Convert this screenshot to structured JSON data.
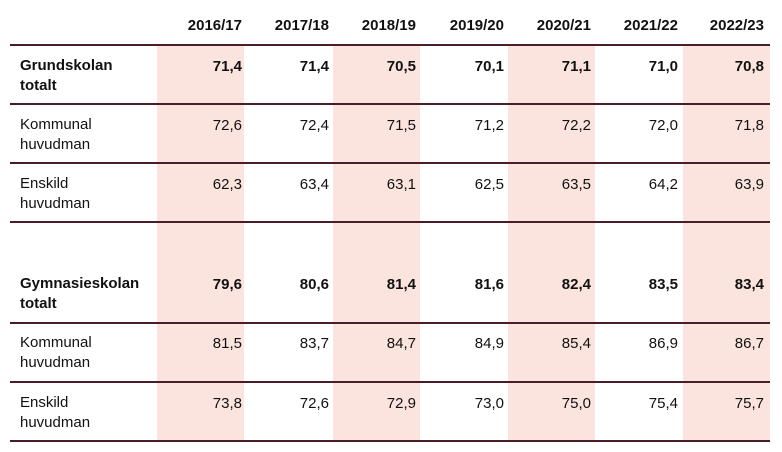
{
  "table": {
    "columns": [
      "2016/17",
      "2017/18",
      "2018/19",
      "2019/20",
      "2020/21",
      "2021/22",
      "2022/23"
    ],
    "rows": [
      {
        "label_line1": "Grundskolan",
        "label_line2": "totalt",
        "bold": true,
        "values": [
          "71,4",
          "71,4",
          "70,5",
          "70,1",
          "71,1",
          "71,0",
          "70,8"
        ]
      },
      {
        "label_line1": "Kommunal",
        "label_line2": "huvudman",
        "bold": false,
        "values": [
          "72,6",
          "72,4",
          "71,5",
          "71,2",
          "72,2",
          "72,0",
          "71,8"
        ]
      },
      {
        "label_line1": "Enskild",
        "label_line2": "huvudman",
        "bold": false,
        "values": [
          "62,3",
          "63,4",
          "63,1",
          "62,5",
          "63,5",
          "64,2",
          "63,9"
        ]
      },
      {
        "label_line1": "",
        "label_line2": "",
        "bold": false,
        "values": [
          "",
          "",
          "",
          "",
          "",
          "",
          ""
        ]
      },
      {
        "label_line1": "Gymnasieskolan",
        "label_line2": "totalt",
        "bold": true,
        "values": [
          "79,6",
          "80,6",
          "81,4",
          "81,6",
          "82,4",
          "83,5",
          "83,4"
        ]
      },
      {
        "label_line1": "Kommunal",
        "label_line2": "huvudman",
        "bold": false,
        "values": [
          "81,5",
          "83,7",
          "84,7",
          "84,9",
          "85,4",
          "86,9",
          "86,7"
        ]
      },
      {
        "label_line1": "Enskild",
        "label_line2": "huvudman",
        "bold": false,
        "values": [
          "73,8",
          "72,6",
          "72,9",
          "73,0",
          "75,0",
          "75,4",
          "75,7"
        ]
      }
    ]
  },
  "colors": {
    "shade": "#fbe4de",
    "rule": "#4a1e28"
  }
}
